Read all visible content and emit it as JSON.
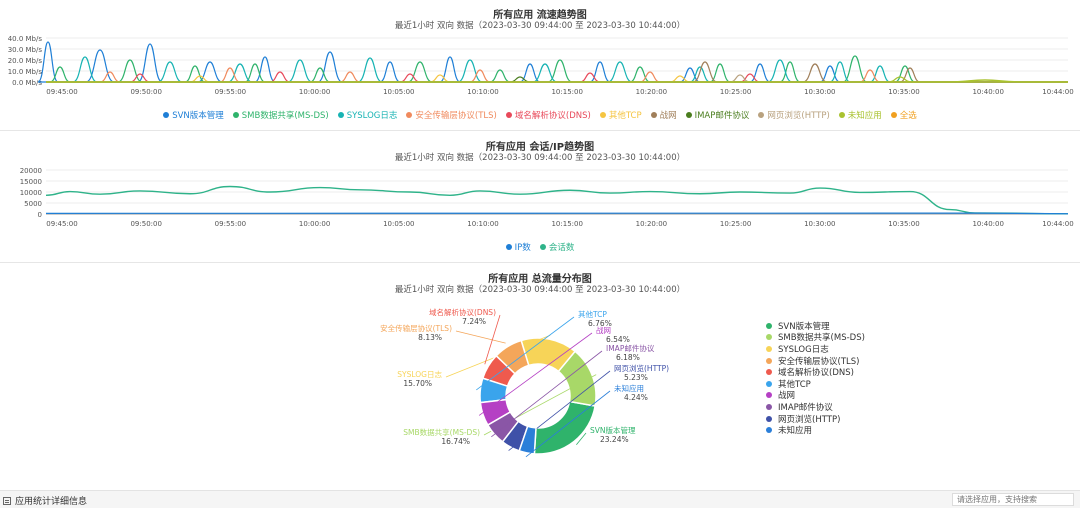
{
  "flow_chart": {
    "title": "所有应用 流速趋势图",
    "subtitle": "最近1小时 双向 数据（2023-03-30 09:44:00 至 2023-03-30 10:44:00）",
    "y_ticks": [
      "40.0 Mb/s",
      "30.0 Mb/s",
      "20.0 Mb/s",
      "10.0 Mb/s",
      "0.0 Mb/s"
    ],
    "x_ticks": [
      "09:45:00",
      "09:50:00",
      "09:55:00",
      "10:00:00",
      "10:05:00",
      "10:10:00",
      "10:15:00",
      "10:20:00",
      "10:25:00",
      "10:30:00",
      "10:35:00",
      "10:40:00",
      "10:44:00"
    ],
    "legend": [
      {
        "label": "SVN版本管理",
        "color": "#1f7fd6"
      },
      {
        "label": "SMB数据共享(MS-DS)",
        "color": "#2fb36b"
      },
      {
        "label": "SYSLOG日志",
        "color": "#17b3b3"
      },
      {
        "label": "安全传输层协议(TLS)",
        "color": "#f08a5d"
      },
      {
        "label": "域名解析协议(DNS)",
        "color": "#e8495a"
      },
      {
        "label": "其他TCP",
        "color": "#f5c542"
      },
      {
        "label": "战网",
        "color": "#a07f5a"
      },
      {
        "label": "IMAP邮件协议",
        "color": "#4a7d1e"
      },
      {
        "label": "网页浏览(HTTP)",
        "color": "#b9a27f"
      },
      {
        "label": "未知应用",
        "color": "#a9c22f"
      },
      {
        "label": "全选",
        "color": "#f0a020"
      }
    ]
  },
  "session_chart": {
    "title": "所有应用 会话/IP趋势图",
    "subtitle": "最近1小时 双向 数据（2023-03-30 09:44:00 至 2023-03-30 10:44:00）",
    "y_ticks": [
      "20000",
      "15000",
      "10000",
      "5000",
      "0"
    ],
    "x_ticks": [
      "09:45:00",
      "09:50:00",
      "09:55:00",
      "10:00:00",
      "10:05:00",
      "10:10:00",
      "10:15:00",
      "10:20:00",
      "10:25:00",
      "10:30:00",
      "10:35:00",
      "10:40:00",
      "10:44:00"
    ],
    "legend": [
      {
        "label": "IP数",
        "color": "#1f7fd6"
      },
      {
        "label": "会话数",
        "color": "#2fb38a"
      }
    ]
  },
  "pie_chart": {
    "title": "所有应用 总流量分布图",
    "subtitle": "最近1小时 双向 数据（2023-03-30 09:44:00 至 2023-03-30 10:44:00）",
    "chart_data": {
      "type": "pie",
      "slices": [
        {
          "name": "SVN版本管理",
          "value": 23.24,
          "pct": "23.24%",
          "color": "#2fb36b"
        },
        {
          "name": "SMB数据共享(MS-DS)",
          "value": 16.74,
          "pct": "16.74%",
          "color": "#a8d868"
        },
        {
          "name": "SYSLOG日志",
          "value": 15.7,
          "pct": "15.70%",
          "color": "#f7d458"
        },
        {
          "name": "安全传输层协议(TLS)",
          "value": 8.13,
          "pct": "8.13%",
          "color": "#f4a65a"
        },
        {
          "name": "域名解析协议(DNS)",
          "value": 7.24,
          "pct": "7.24%",
          "color": "#ef5a4e"
        },
        {
          "name": "其他TCP",
          "value": 6.76,
          "pct": "6.76%",
          "color": "#3aa4ec"
        },
        {
          "name": "战网",
          "value": 6.54,
          "pct": "6.54%",
          "color": "#b540c4"
        },
        {
          "name": "IMAP邮件协议",
          "value": 6.18,
          "pct": "6.18%",
          "color": "#8a56a6"
        },
        {
          "name": "网页浏览(HTTP)",
          "value": 5.23,
          "pct": "5.23%",
          "color": "#3f51a8"
        },
        {
          "name": "未知应用",
          "value": 4.24,
          "pct": "4.24%",
          "color": "#2b7fd9"
        }
      ]
    }
  },
  "bottom": {
    "title": "应用统计详细信息",
    "search_placeholder": "请选择应用，支持搜索"
  }
}
